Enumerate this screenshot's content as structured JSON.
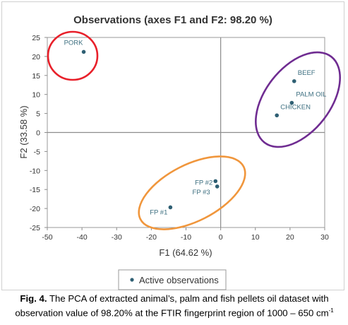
{
  "chart_data": {
    "type": "scatter",
    "title": "Observations (axes F1 and F2: 98.20 %)",
    "xlabel": "F1 (64.62 %)",
    "ylabel": "F2 (33.58 %)",
    "xlim": [
      -50,
      30
    ],
    "ylim": [
      -25,
      25
    ],
    "x_ticks": [
      -50,
      -40,
      -30,
      -20,
      -10,
      0,
      10,
      20,
      30
    ],
    "y_ticks": [
      -25,
      -20,
      -15,
      -10,
      -5,
      0,
      5,
      10,
      15,
      20,
      25
    ],
    "grid": false,
    "legend_position": "bottom-center",
    "series": [
      {
        "name": "Active observations",
        "color": "#2e5f73",
        "points": [
          {
            "label": "PORK",
            "x": -39.5,
            "y": 21.2
          },
          {
            "label": "BEEF",
            "x": 21.2,
            "y": 13.5
          },
          {
            "label": "PALM OIL",
            "x": 20.5,
            "y": 7.8
          },
          {
            "label": "CHICKEN",
            "x": 16.2,
            "y": 4.5
          },
          {
            "label": "FP #2",
            "x": -1.5,
            "y": -12.8
          },
          {
            "label": "FP #3",
            "x": -1.0,
            "y": -14.2
          },
          {
            "label": "FP #1",
            "x": -14.5,
            "y": -19.7
          }
        ]
      }
    ],
    "highlight_groups": [
      {
        "color": "#e8202a"
      },
      {
        "color": "#6f2c91"
      },
      {
        "color": "#f0963c"
      }
    ]
  },
  "caption": {
    "label": "Fig. 4.",
    "text_before_sup": "The PCA of extracted animal’s, palm and fish pellets oil dataset with observation value of 98.20% at the FTIR fingerprint region of 1000 – 650 cm",
    "sup": "-1"
  }
}
